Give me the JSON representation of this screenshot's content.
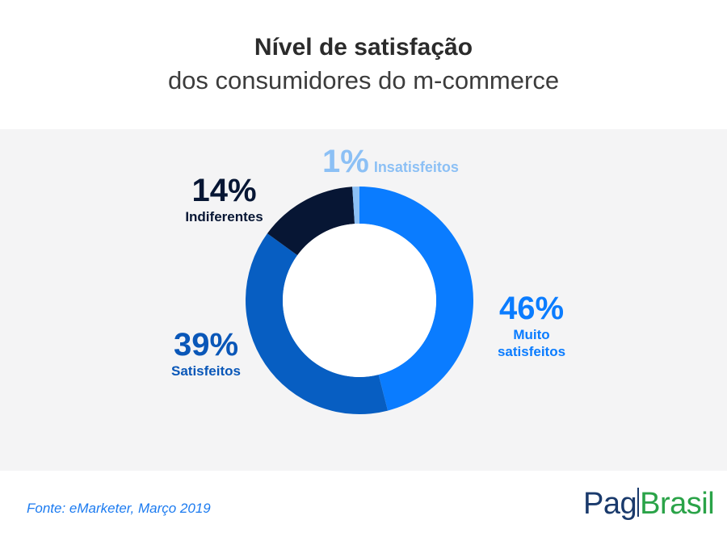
{
  "header": {
    "title": "Nível de satisfação",
    "subtitle": "dos consumidores do m-commerce"
  },
  "chart_data": {
    "type": "pie",
    "variant": "donut",
    "title": "Nível de satisfação",
    "subtitle": "dos consumidores do m-commerce",
    "categories": [
      "Muito satisfeitos",
      "Satisfeitos",
      "Indiferentes",
      "Insatisfeitos"
    ],
    "values": [
      46,
      39,
      14,
      1
    ],
    "labels": [
      {
        "pct": "46%",
        "name_lines": [
          "Muito",
          "satisfeitos"
        ]
      },
      {
        "pct": "39%",
        "name_lines": [
          "Satisfeitos"
        ]
      },
      {
        "pct": "14%",
        "name_lines": [
          "Indiferentes"
        ]
      },
      {
        "pct": "1%",
        "name_lines": [
          "Insatisfeitos"
        ]
      }
    ],
    "colors": [
      "#0a7cff",
      "#075ec2",
      "#071634",
      "#8cc0f5"
    ],
    "label_colors": [
      "#0a7cff",
      "#0a57b8",
      "#071634",
      "#8cc0f5"
    ],
    "start_angle_deg": 0,
    "direction": "clockwise"
  },
  "footer": {
    "source": "Fonte: eMarketer, Março 2019",
    "logo_pag": "Pag",
    "logo_brasil": "Brasil"
  }
}
